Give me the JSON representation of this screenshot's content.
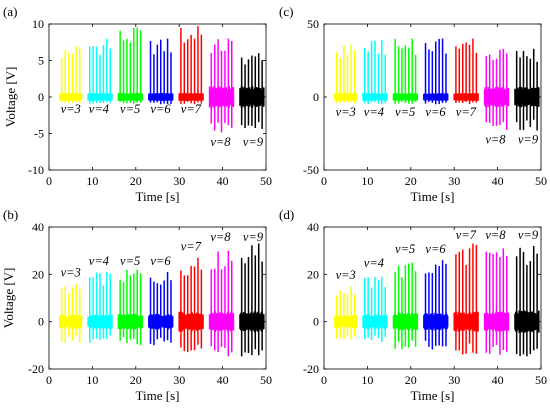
{
  "chart_data": [
    {
      "type": "line",
      "panel_label": "(a)",
      "xlabel": "Time [s]",
      "ylabel": "Voltage [V]",
      "xlim": [
        0,
        50
      ],
      "ylim": [
        -10,
        10
      ],
      "xticks": [
        0,
        10,
        20,
        30,
        40,
        50
      ],
      "yticks": [
        -10,
        -5,
        0,
        5,
        10
      ],
      "grid": false,
      "series": [
        {
          "name": "v=3",
          "color": "#ffff00",
          "t_start": 2.5,
          "t_end": 7.5,
          "pulses": 6,
          "peak_max": 7,
          "trough_min": -1,
          "label_pos": [
            5,
            -2.2
          ]
        },
        {
          "name": "v=4",
          "color": "#00ffff",
          "t_start": 9,
          "t_end": 14.5,
          "pulses": 7,
          "peak_max": 8,
          "trough_min": -1,
          "label_pos": [
            11.5,
            -2.2
          ]
        },
        {
          "name": "v=5",
          "color": "#00ff00",
          "t_start": 16,
          "t_end": 21.5,
          "pulses": 7,
          "peak_max": 9.5,
          "trough_min": -1,
          "label_pos": [
            18.7,
            -2.2
          ]
        },
        {
          "name": "v=6",
          "color": "#0000ff",
          "t_start": 23,
          "t_end": 28.5,
          "pulses": 7,
          "peak_max": 8,
          "trough_min": -1,
          "label_pos": [
            25.7,
            -2.2
          ]
        },
        {
          "name": "v=7",
          "color": "#ff0000",
          "t_start": 30,
          "t_end": 35.5,
          "pulses": 7,
          "peak_max": 9.7,
          "trough_min": -1,
          "label_pos": [
            32.7,
            -2.2
          ]
        },
        {
          "name": "v=8",
          "color": "#ff00ff",
          "t_start": 37,
          "t_end": 42.5,
          "pulses": 7,
          "peak_max": 8,
          "trough_min": -5,
          "label_pos": [
            39.5,
            -6.7
          ]
        },
        {
          "name": "v=9",
          "color": "#000000",
          "t_start": 44,
          "t_end": 49.5,
          "pulses": 7,
          "peak_max": 6,
          "trough_min": -5,
          "label_pos": [
            47,
            -6.7
          ]
        }
      ]
    },
    {
      "type": "line",
      "panel_label": "(c)",
      "xlabel": "Time [s]",
      "ylabel": "",
      "xlim": [
        0,
        50
      ],
      "ylim": [
        -50,
        50
      ],
      "xticks": [
        0,
        10,
        20,
        30,
        40,
        50
      ],
      "yticks": [
        -50,
        0,
        50
      ],
      "grid": false,
      "series": [
        {
          "name": "v=3",
          "color": "#ffff00",
          "t_start": 2.5,
          "t_end": 7.5,
          "pulses": 6,
          "peak_max": 36,
          "trough_min": -5,
          "label_pos": [
            5,
            -13
          ]
        },
        {
          "name": "v=4",
          "color": "#00ffff",
          "t_start": 9,
          "t_end": 14.5,
          "pulses": 7,
          "peak_max": 39,
          "trough_min": -5,
          "label_pos": [
            11.5,
            -13
          ]
        },
        {
          "name": "v=5",
          "color": "#00ff00",
          "t_start": 16,
          "t_end": 21.5,
          "pulses": 7,
          "peak_max": 40,
          "trough_min": -5,
          "label_pos": [
            18.7,
            -13
          ]
        },
        {
          "name": "v=6",
          "color": "#0000ff",
          "t_start": 23,
          "t_end": 28.5,
          "pulses": 7,
          "peak_max": 40,
          "trough_min": -5,
          "label_pos": [
            25.7,
            -13
          ]
        },
        {
          "name": "v=7",
          "color": "#ff0000",
          "t_start": 30,
          "t_end": 35.5,
          "pulses": 7,
          "peak_max": 40,
          "trough_min": -5,
          "label_pos": [
            32.7,
            -13
          ]
        },
        {
          "name": "v=8",
          "color": "#ff00ff",
          "t_start": 37,
          "t_end": 42.5,
          "pulses": 7,
          "peak_max": 33,
          "trough_min": -23,
          "label_pos": [
            39.5,
            -32
          ]
        },
        {
          "name": "v=9",
          "color": "#000000",
          "t_start": 44,
          "t_end": 49.5,
          "pulses": 7,
          "peak_max": 33,
          "trough_min": -23,
          "label_pos": [
            47,
            -32
          ]
        }
      ]
    },
    {
      "type": "line",
      "panel_label": "(b)",
      "xlabel": "Time [s]",
      "ylabel": "Voltage [V]",
      "xlim": [
        0,
        50
      ],
      "ylim": [
        -20,
        40
      ],
      "xticks": [
        0,
        10,
        20,
        30,
        40,
        50
      ],
      "yticks": [
        -20,
        0,
        20,
        40
      ],
      "grid": false,
      "series": [
        {
          "name": "v=3",
          "color": "#ffff00",
          "t_start": 2.5,
          "t_end": 7.5,
          "pulses": 6,
          "peak_max": 16,
          "trough_min": -9,
          "label_pos": [
            5,
            19
          ]
        },
        {
          "name": "v=4",
          "color": "#00ffff",
          "t_start": 9,
          "t_end": 14.5,
          "pulses": 7,
          "peak_max": 21,
          "trough_min": -9,
          "label_pos": [
            11.5,
            24
          ]
        },
        {
          "name": "v=5",
          "color": "#00ff00",
          "t_start": 16,
          "t_end": 21.5,
          "pulses": 7,
          "peak_max": 22,
          "trough_min": -10,
          "label_pos": [
            18.7,
            24
          ]
        },
        {
          "name": "v=6",
          "color": "#0000ff",
          "t_start": 23,
          "t_end": 28.5,
          "pulses": 7,
          "peak_max": 21,
          "trough_min": -10,
          "label_pos": [
            25.7,
            24
          ]
        },
        {
          "name": "v=7",
          "color": "#ff0000",
          "t_start": 30,
          "t_end": 35.5,
          "pulses": 7,
          "peak_max": 27,
          "trough_min": -14,
          "label_pos": [
            32.7,
            30
          ]
        },
        {
          "name": "v=8",
          "color": "#ff00ff",
          "t_start": 37,
          "t_end": 42.5,
          "pulses": 7,
          "peak_max": 30,
          "trough_min": -15,
          "label_pos": [
            39.5,
            34
          ]
        },
        {
          "name": "v=9",
          "color": "#000000",
          "t_start": 44,
          "t_end": 49.5,
          "pulses": 7,
          "peak_max": 33,
          "trough_min": -15,
          "label_pos": [
            47,
            34
          ]
        }
      ]
    },
    {
      "type": "line",
      "panel_label": "(d)",
      "xlabel": "Time [s]",
      "ylabel": "",
      "xlim": [
        0,
        50
      ],
      "ylim": [
        -20,
        40
      ],
      "xticks": [
        0,
        10,
        20,
        30,
        40,
        50
      ],
      "yticks": [
        -20,
        0,
        20,
        40
      ],
      "grid": false,
      "series": [
        {
          "name": "v=3",
          "color": "#ffff00",
          "t_start": 2.5,
          "t_end": 7.5,
          "pulses": 6,
          "peak_max": 15,
          "trough_min": -8,
          "label_pos": [
            5,
            18
          ]
        },
        {
          "name": "v=4",
          "color": "#00ffff",
          "t_start": 9,
          "t_end": 14.5,
          "pulses": 7,
          "peak_max": 19,
          "trough_min": -9,
          "label_pos": [
            11.5,
            23
          ]
        },
        {
          "name": "v=5",
          "color": "#00ff00",
          "t_start": 16,
          "t_end": 21.5,
          "pulses": 7,
          "peak_max": 25,
          "trough_min": -12,
          "label_pos": [
            18.7,
            29
          ]
        },
        {
          "name": "v=6",
          "color": "#0000ff",
          "t_start": 23,
          "t_end": 28.5,
          "pulses": 7,
          "peak_max": 26,
          "trough_min": -12,
          "label_pos": [
            25.7,
            29
          ]
        },
        {
          "name": "v=7",
          "color": "#ff0000",
          "t_start": 30,
          "t_end": 35.5,
          "pulses": 7,
          "peak_max": 33,
          "trough_min": -14,
          "label_pos": [
            32.7,
            35
          ]
        },
        {
          "name": "v=8",
          "color": "#ff00ff",
          "t_start": 37,
          "t_end": 42.5,
          "pulses": 7,
          "peak_max": 31,
          "trough_min": -14,
          "label_pos": [
            39.5,
            35
          ]
        },
        {
          "name": "v=9",
          "color": "#000000",
          "t_start": 44,
          "t_end": 49.5,
          "pulses": 7,
          "peak_max": 32,
          "trough_min": -16,
          "label_pos": [
            47,
            35
          ]
        }
      ]
    }
  ]
}
